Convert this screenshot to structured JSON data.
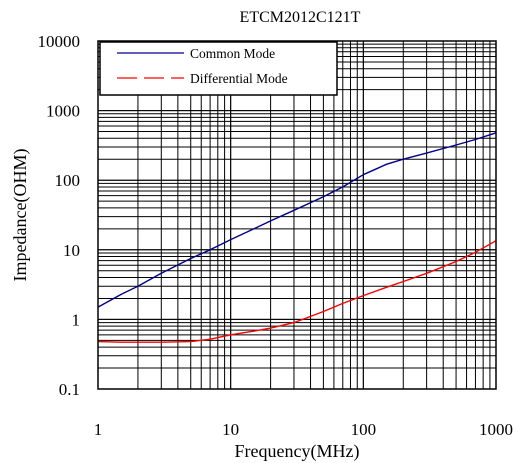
{
  "chart_data": {
    "type": "line",
    "title": "ETCM2012C121T",
    "xlabel": "Frequency(MHz)",
    "ylabel": "Impedance(OHM)",
    "x_scale": "log",
    "y_scale": "log",
    "xlim": [
      1,
      1000
    ],
    "ylim": [
      0.1,
      10000
    ],
    "x_ticks": [
      {
        "value": 1,
        "label": "1"
      },
      {
        "value": 10,
        "label": "10"
      },
      {
        "value": 100,
        "label": "100"
      },
      {
        "value": 1000,
        "label": "1000"
      }
    ],
    "y_ticks": [
      {
        "value": 0.1,
        "label": "0.1"
      },
      {
        "value": 1,
        "label": "1"
      },
      {
        "value": 10,
        "label": "10"
      },
      {
        "value": 100,
        "label": "100"
      },
      {
        "value": 1000,
        "label": "1000"
      },
      {
        "value": 10000,
        "label": "10000"
      }
    ],
    "grid": true,
    "legend_position": "top-left",
    "series": [
      {
        "name": "Common Mode",
        "color": "#00008b",
        "line_style": "solid",
        "x": [
          1,
          1.5,
          2,
          3,
          5,
          7,
          10,
          15,
          20,
          30,
          50,
          70,
          100,
          150,
          200,
          300,
          500,
          700,
          1000
        ],
        "y": [
          1.5,
          2.3,
          3.0,
          4.6,
          7.5,
          10,
          14,
          20,
          26,
          37,
          58,
          80,
          120,
          170,
          200,
          245,
          320,
          385,
          480
        ]
      },
      {
        "name": "Differential Mode",
        "color": "#ff0000",
        "line_style": "dashed",
        "x": [
          1,
          1.5,
          2,
          3,
          5,
          7,
          10,
          15,
          20,
          30,
          50,
          70,
          100,
          150,
          200,
          300,
          500,
          700,
          1000
        ],
        "y": [
          0.48,
          0.47,
          0.47,
          0.47,
          0.48,
          0.52,
          0.6,
          0.68,
          0.75,
          0.9,
          1.3,
          1.7,
          2.2,
          2.9,
          3.5,
          4.6,
          6.8,
          9.2,
          13.5
        ]
      }
    ]
  }
}
